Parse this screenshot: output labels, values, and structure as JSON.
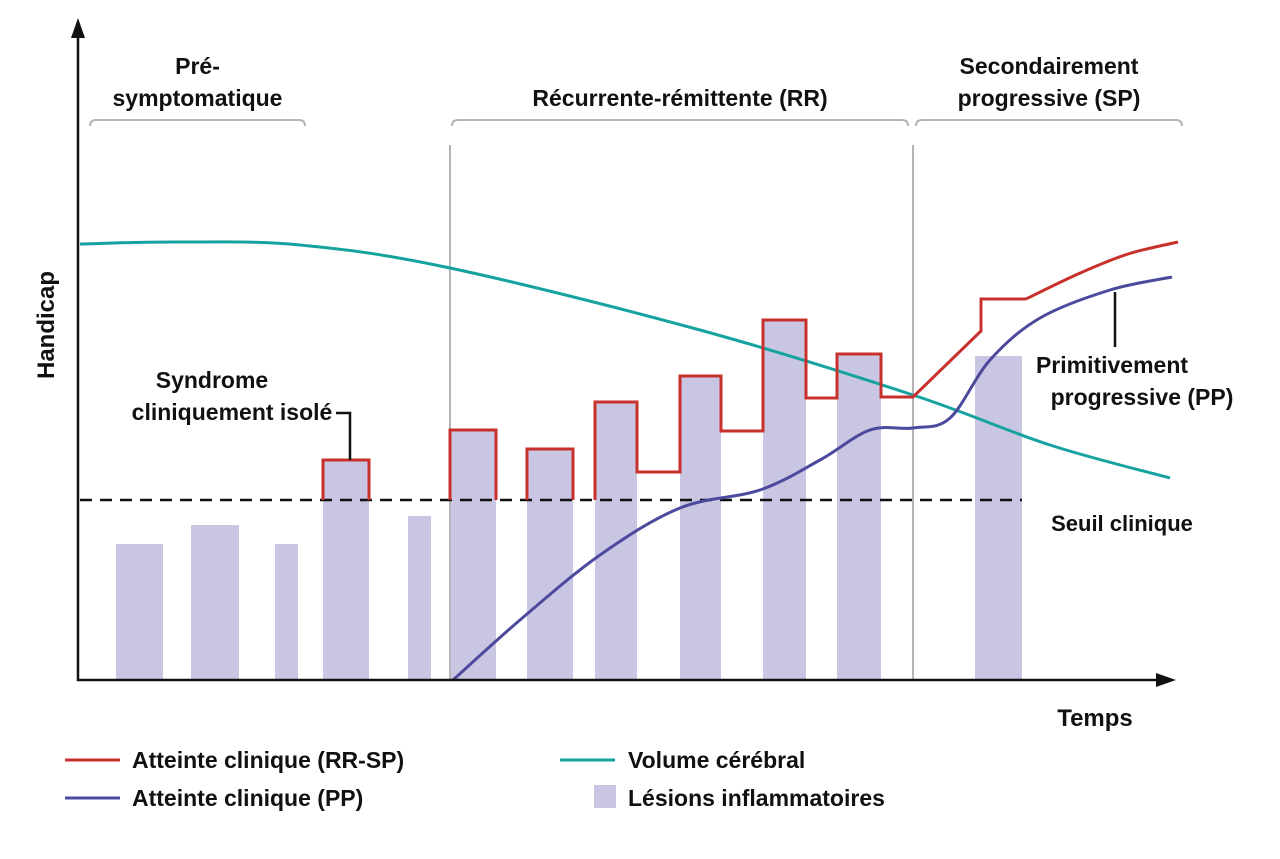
{
  "chart_data": {
    "type": "diagram",
    "ylabel": "Handicap",
    "xlabel": "Temps",
    "phases": [
      {
        "label_lines": [
          "Pré-",
          "symptomatique"
        ],
        "start": 1.2,
        "end": 22.7
      },
      {
        "label_lines": [
          "Récurrente-rémittente (RR)"
        ],
        "start": 37.4,
        "end": 83.0
      },
      {
        "label_lines": [
          "Secondairement",
          "progressive (SP)"
        ],
        "start": 83.8,
        "end": 110.4
      }
    ],
    "phase_dividers": [
      37.2,
      83.5
    ],
    "threshold": {
      "value": 18.0,
      "label": "Seuil clinique"
    },
    "lesions": [
      {
        "start": 3.8,
        "end": 8.5,
        "value": 13.6
      },
      {
        "start": 11.3,
        "end": 16.1,
        "value": 15.5
      },
      {
        "start": 19.7,
        "end": 22.0,
        "value": 13.6
      },
      {
        "start": 24.5,
        "end": 29.1,
        "value": 22.0
      },
      {
        "start": 33.0,
        "end": 35.3,
        "value": 16.4
      },
      {
        "start": 37.2,
        "end": 41.8,
        "value": 25.0
      },
      {
        "start": 44.9,
        "end": 49.5,
        "value": 23.1
      },
      {
        "start": 51.7,
        "end": 55.9,
        "value": 27.8
      },
      {
        "start": 60.2,
        "end": 64.3,
        "value": 30.4
      },
      {
        "start": 68.5,
        "end": 72.8,
        "value": 36.0
      },
      {
        "start": 75.9,
        "end": 80.3,
        "value": 32.6
      },
      {
        "start": 89.7,
        "end": 94.4,
        "value": 32.4
      }
    ],
    "series": [
      {
        "name": "Atteinte clinique (RR-SP)",
        "color": "#c8312b",
        "steps": [
          [
            24.5,
            18
          ],
          [
            24.5,
            22
          ],
          [
            29.1,
            22
          ],
          [
            29.1,
            18
          ]
        ],
        "steps2": [
          [
            37.2,
            18
          ],
          [
            37.2,
            25
          ],
          [
            41.8,
            25
          ],
          [
            41.8,
            18
          ]
        ],
        "steps3": [
          [
            44.9,
            18
          ],
          [
            44.9,
            23.1
          ],
          [
            49.5,
            23.1
          ],
          [
            49.5,
            18
          ]
        ],
        "main": [
          [
            51.7,
            18
          ],
          [
            51.7,
            27.8
          ],
          [
            55.9,
            27.8
          ],
          [
            55.9,
            20.8
          ],
          [
            60.2,
            20.8
          ],
          [
            60.2,
            30.4
          ],
          [
            64.3,
            30.4
          ],
          [
            64.3,
            24.9
          ],
          [
            68.5,
            24.9
          ],
          [
            68.5,
            36
          ],
          [
            72.8,
            36
          ],
          [
            72.8,
            28.2
          ],
          [
            75.9,
            28.2
          ],
          [
            75.9,
            32.6
          ],
          [
            80.3,
            32.6
          ],
          [
            80.3,
            28.3
          ],
          [
            83.5,
            28.3
          ],
          [
            90.3,
            34.9
          ],
          [
            90.3,
            38.1
          ],
          [
            94.8,
            38.1
          ]
        ],
        "curve": [
          [
            94.8,
            38.1
          ],
          [
            100,
            40.6
          ],
          [
            105,
            42.6
          ],
          [
            110,
            43.8
          ]
        ]
      },
      {
        "name": "Atteinte clinique (PP)",
        "color": "#4b4a9c",
        "curve": [
          [
            37.5,
            0
          ],
          [
            44.2,
            6
          ],
          [
            52.2,
            12.5
          ],
          [
            60.2,
            17.2
          ],
          [
            68.2,
            19
          ],
          [
            74.2,
            22
          ],
          [
            79.2,
            25
          ],
          [
            83.5,
            25.2
          ],
          [
            87.2,
            26.2
          ],
          [
            91.2,
            32
          ],
          [
            96.2,
            36.2
          ],
          [
            103.2,
            39
          ],
          [
            109.4,
            40.3
          ]
        ]
      },
      {
        "name": "Volume cérébral",
        "color": "#16a3a0",
        "curve": [
          [
            0.2,
            43.6
          ],
          [
            10,
            43.8
          ],
          [
            22.2,
            43.5
          ],
          [
            37.2,
            41.2
          ],
          [
            62.2,
            35
          ],
          [
            83.5,
            28.5
          ],
          [
            97.2,
            23.5
          ],
          [
            109.2,
            20.2
          ]
        ]
      },
      {
        "name": "Lésions inflammatoires",
        "color": "#c9c6e3"
      }
    ],
    "annotations": [
      {
        "lines": [
          "Syndrome",
          "cliniquement isolé"
        ]
      },
      {
        "lines": [
          "Primitivement",
          "progressive (PP)"
        ]
      }
    ]
  }
}
